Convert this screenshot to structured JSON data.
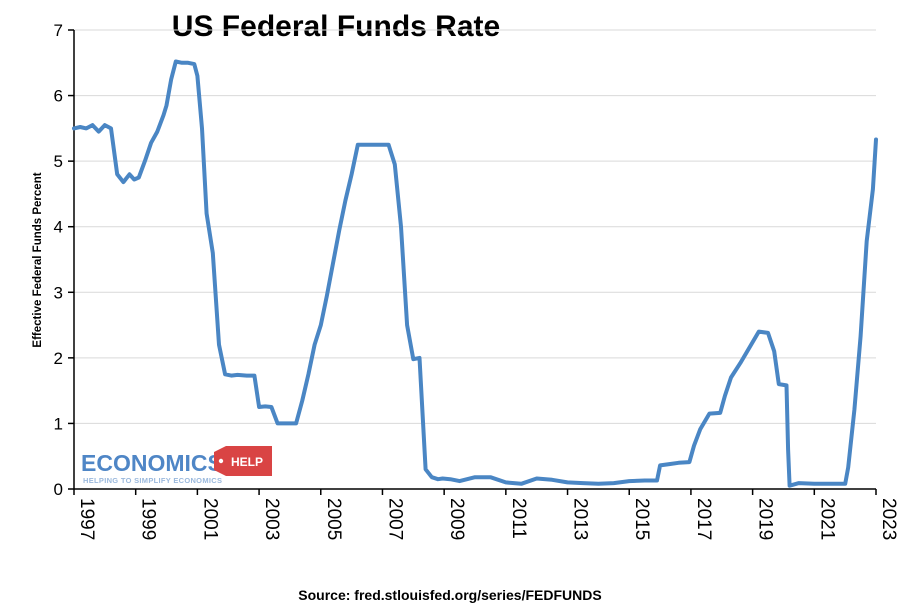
{
  "title": "US Federal Funds Rate",
  "source": "Source: fred.stlouisfed.org/series/FEDFUNDS",
  "logo": {
    "main": "ECONOMICS",
    "badge": "HELP",
    "tagline": "HELPING TO SIMPLIFY ECONOMICS"
  },
  "colors": {
    "line": "#4a86c4",
    "grid": "#d9d9d9",
    "axis": "#000000",
    "logo_blue": "#4f86c6",
    "logo_red": "#d94444"
  },
  "chart_data": {
    "type": "line",
    "title": "US Federal Funds Rate",
    "xlabel": "",
    "ylabel": "Effective Federal Funds Percent",
    "xlim": [
      1997,
      2023
    ],
    "ylim": [
      0,
      7
    ],
    "yticks": [
      "0",
      "1",
      "2",
      "3",
      "4",
      "5",
      "6",
      "7"
    ],
    "xticks": [
      "1997",
      "1999",
      "2001",
      "2003",
      "2005",
      "2007",
      "2009",
      "2011",
      "2013",
      "2015",
      "2017",
      "2019",
      "2021",
      "2023"
    ],
    "grid": "horizontal",
    "series": [
      {
        "x": [
          1997.0,
          1997.2,
          1997.4,
          1997.6,
          1997.8,
          1998.0,
          1998.2,
          1998.4,
          1998.6,
          1998.8,
          1998.95,
          1999.1,
          1999.3,
          1999.5,
          1999.7,
          1999.9,
          2000.0,
          2000.15,
          2000.3,
          2000.5,
          2000.7,
          2000.9,
          2001.0,
          2001.15,
          2001.3,
          2001.5,
          2001.7,
          2001.9,
          2002.1,
          2002.3,
          2002.6,
          2002.85,
          2003.0,
          2003.2,
          2003.4,
          2003.6,
          2003.8,
          2004.0,
          2004.2,
          2004.4,
          2004.6,
          2004.8,
          2005.0,
          2005.2,
          2005.4,
          2005.6,
          2005.8,
          2006.0,
          2006.2,
          2006.4,
          2006.6,
          2006.8,
          2007.0,
          2007.2,
          2007.4,
          2007.6,
          2007.8,
          2008.0,
          2008.2,
          2008.4,
          2008.6,
          2008.8,
          2008.95,
          2009.2,
          2009.5,
          2010.0,
          2010.5,
          2011.0,
          2011.5,
          2012.0,
          2012.5,
          2013.0,
          2013.5,
          2014.0,
          2014.5,
          2015.0,
          2015.5,
          2015.9,
          2016.0,
          2016.3,
          2016.6,
          2016.95,
          2017.1,
          2017.3,
          2017.6,
          2017.95,
          2018.1,
          2018.3,
          2018.6,
          2018.95,
          2019.2,
          2019.5,
          2019.7,
          2019.85,
          2020.1,
          2020.15,
          2020.2,
          2020.5,
          2021.0,
          2021.5,
          2022.0,
          2022.1,
          2022.3,
          2022.5,
          2022.7,
          2022.9,
          2023.0
        ],
        "y": [
          5.5,
          5.52,
          5.5,
          5.55,
          5.45,
          5.55,
          5.5,
          4.8,
          4.68,
          4.8,
          4.72,
          4.75,
          5.0,
          5.28,
          5.45,
          5.7,
          5.85,
          6.25,
          6.52,
          6.5,
          6.5,
          6.48,
          6.3,
          5.5,
          4.2,
          3.6,
          2.2,
          1.75,
          1.73,
          1.74,
          1.73,
          1.73,
          1.25,
          1.26,
          1.25,
          1.0,
          1.0,
          1.0,
          1.0,
          1.35,
          1.75,
          2.2,
          2.5,
          2.95,
          3.45,
          3.95,
          4.4,
          4.8,
          5.25,
          5.25,
          5.25,
          5.25,
          5.25,
          5.25,
          4.95,
          4.0,
          2.5,
          1.98,
          2.0,
          0.3,
          0.18,
          0.15,
          0.16,
          0.15,
          0.12,
          0.18,
          0.18,
          0.1,
          0.08,
          0.16,
          0.14,
          0.1,
          0.09,
          0.08,
          0.09,
          0.12,
          0.13,
          0.13,
          0.36,
          0.38,
          0.4,
          0.41,
          0.66,
          0.91,
          1.15,
          1.16,
          1.42,
          1.7,
          1.92,
          2.2,
          2.4,
          2.38,
          2.1,
          1.6,
          1.58,
          0.6,
          0.05,
          0.09,
          0.08,
          0.08,
          0.08,
          0.33,
          1.21,
          2.33,
          3.78,
          4.57,
          5.33
        ]
      }
    ]
  }
}
